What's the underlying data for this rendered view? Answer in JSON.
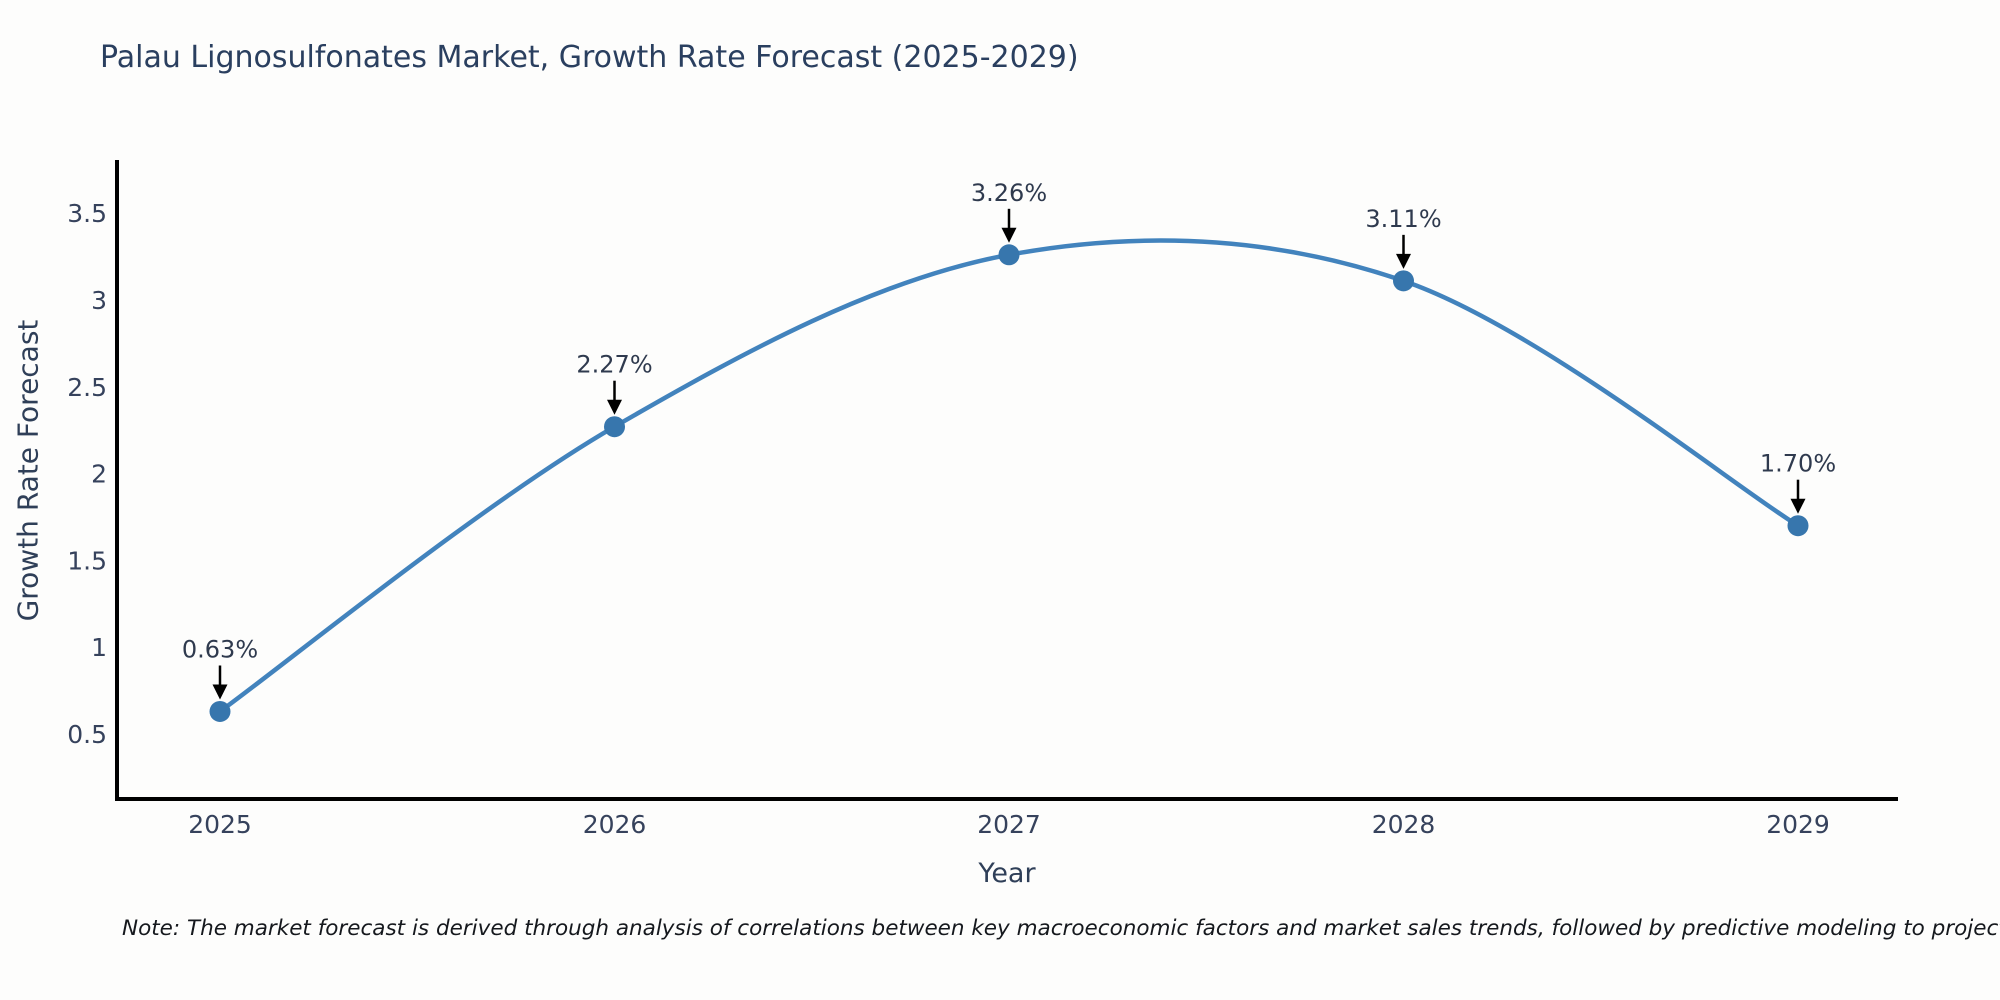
{
  "title": "Palau Lignosulfonates Market, Growth Rate Forecast (2025-2029)",
  "note": "Note: The market forecast is derived through analysis of correlations between key macroeconomic factors and market sales trends, followed by predictive modeling to project future sales",
  "chart_data": {
    "type": "line",
    "title": "Palau Lignosulfonates Market, Growth Rate Forecast (2025-2029)",
    "xlabel": "Year",
    "ylabel": "Growth Rate Forecast",
    "categories": [
      2025,
      2026,
      2027,
      2028,
      2029
    ],
    "values": [
      0.63,
      2.27,
      3.26,
      3.11,
      1.7
    ],
    "point_labels": [
      "0.63%",
      "2.27%",
      "3.26%",
      "3.11%",
      "1.70%"
    ],
    "yticks": [
      0.5,
      1,
      1.5,
      2,
      2.5,
      3,
      3.5
    ],
    "ylim": [
      0.126,
      3.806
    ],
    "line_shape": "spline",
    "grid": false,
    "legend": "none",
    "colors": {
      "line": "#4283bd",
      "marker": "#3776ad",
      "axis": "#000000",
      "title_text": "#2a3f5f",
      "tick_text": "#36425c",
      "annotation_text": "#2f3a4e",
      "annotation_arrow": "#000000",
      "background": "#fdfdfc"
    }
  }
}
